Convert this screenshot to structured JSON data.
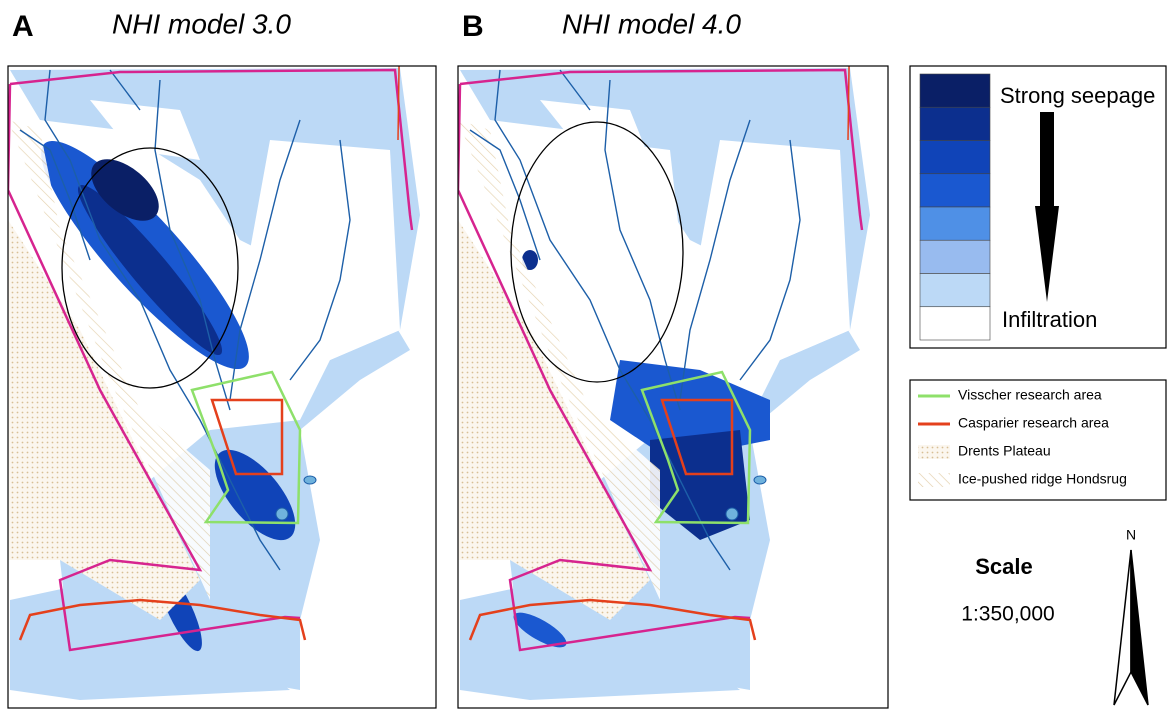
{
  "panels": [
    {
      "letter": "A",
      "title": "NHI model 3.0"
    },
    {
      "letter": "B",
      "title": "NHI model 4.0"
    }
  ],
  "colorbar": {
    "top_label": "Strong seepage",
    "bottom_label": "Infiltration",
    "colors": [
      "#0a1f66",
      "#0c2f8e",
      "#1044b8",
      "#1a58d0",
      "#4f90e6",
      "#98bbef",
      "#bcd9f6",
      "#ffffff"
    ]
  },
  "legend": [
    {
      "label": "Visscher research area",
      "color": "#8ee06a",
      "kind": "line"
    },
    {
      "label": "Casparier research area",
      "color": "#e4401c",
      "kind": "line"
    },
    {
      "label": "Drents Plateau",
      "kind": "dots"
    },
    {
      "label": "Ice-pushed ridge Hondsrug",
      "kind": "hatch"
    }
  ],
  "scale": {
    "title": "Scale",
    "value": "1:350,000"
  },
  "north": "N"
}
